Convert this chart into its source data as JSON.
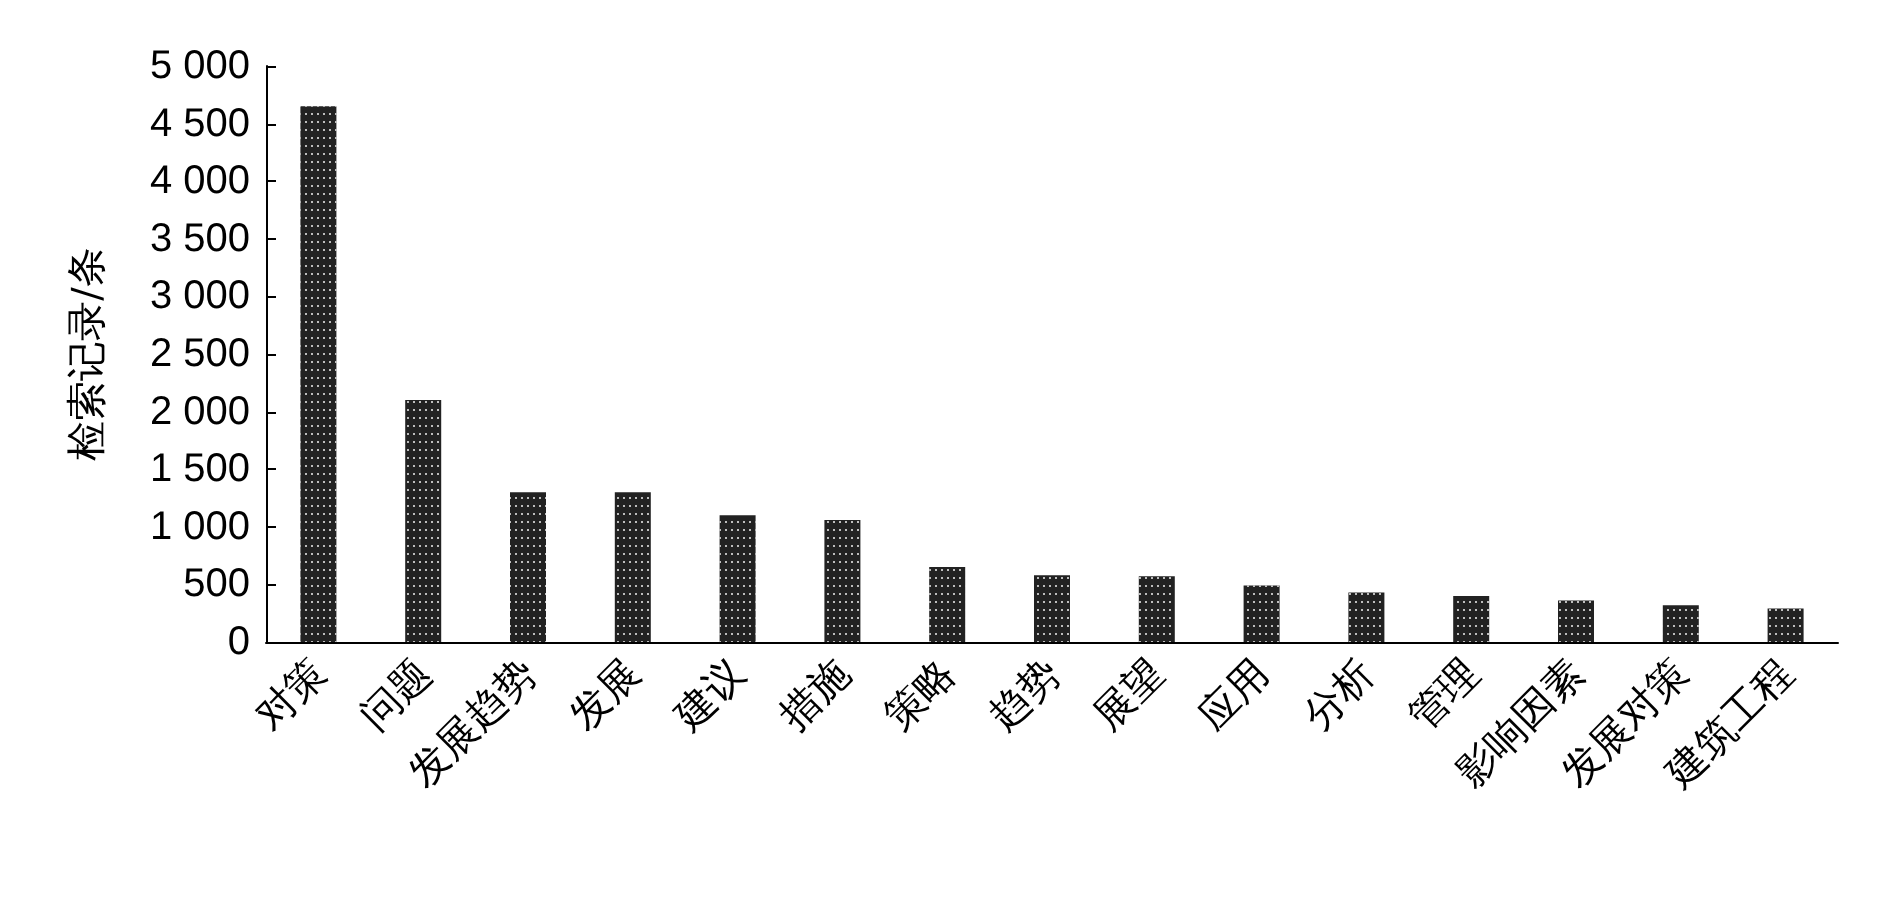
{
  "chart_data": {
    "type": "bar",
    "ylabel": "检索记录/条",
    "categories": [
      "对策",
      "问题",
      "发展趋势",
      "发展",
      "建议",
      "措施",
      "策略",
      "趋势",
      "展望",
      "应用",
      "分析",
      "管理",
      "影响因素",
      "发展对策",
      "建筑工程"
    ],
    "values": [
      4650,
      2100,
      1300,
      1300,
      1100,
      1060,
      650,
      580,
      570,
      490,
      430,
      400,
      360,
      320,
      290
    ],
    "color": "#222222",
    "ylim": [
      0,
      5000
    ],
    "yticks": [
      0,
      500,
      {
        "value": 1000,
        "label": "1 000"
      },
      {
        "value": 1500,
        "label": "1 500"
      },
      {
        "value": 2000,
        "label": "2 000"
      },
      {
        "value": 2500,
        "label": "2 500"
      },
      {
        "value": 3000,
        "label": "3 000"
      },
      {
        "value": 3500,
        "label": "3 500"
      },
      {
        "value": 4000,
        "label": "4 000"
      },
      {
        "value": 4500,
        "label": "4 500"
      },
      {
        "value": 5000,
        "label": "5 000"
      }
    ],
    "grid": false
  }
}
